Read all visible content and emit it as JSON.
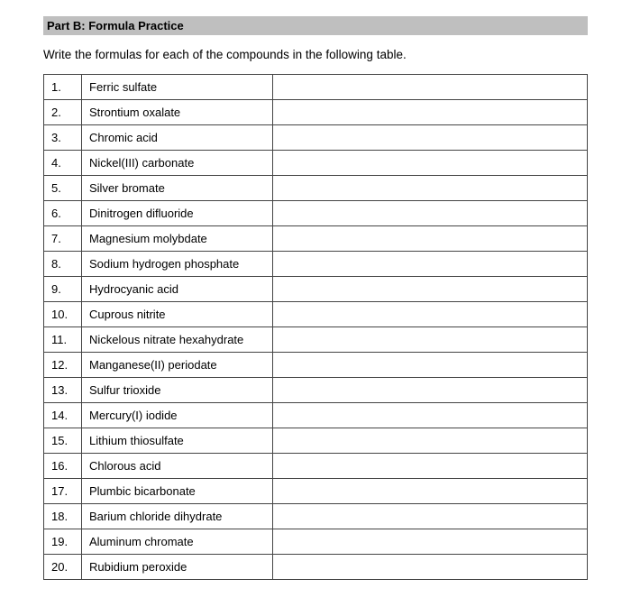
{
  "section_title": "Part B: Formula Practice",
  "instruction": "Write the formulas for each of the compounds in the following table.",
  "rows": [
    {
      "n": "1.",
      "name": "Ferric sulfate",
      "answer": ""
    },
    {
      "n": "2.",
      "name": "Strontium oxalate",
      "answer": ""
    },
    {
      "n": "3.",
      "name": "Chromic acid",
      "answer": ""
    },
    {
      "n": "4.",
      "name": "Nickel(III) carbonate",
      "answer": ""
    },
    {
      "n": "5.",
      "name": "Silver bromate",
      "answer": ""
    },
    {
      "n": "6.",
      "name": "Dinitrogen difluoride",
      "answer": ""
    },
    {
      "n": "7.",
      "name": "Magnesium molybdate",
      "answer": ""
    },
    {
      "n": "8.",
      "name": "Sodium hydrogen phosphate",
      "answer": ""
    },
    {
      "n": "9.",
      "name": "Hydrocyanic acid",
      "answer": ""
    },
    {
      "n": "10.",
      "name": "Cuprous nitrite",
      "answer": ""
    },
    {
      "n": "11.",
      "name": "Nickelous nitrate hexahydrate",
      "answer": ""
    },
    {
      "n": "12.",
      "name": "Manganese(II) periodate",
      "answer": ""
    },
    {
      "n": "13.",
      "name": "Sulfur trioxide",
      "answer": ""
    },
    {
      "n": "14.",
      "name": "Mercury(I) iodide",
      "answer": ""
    },
    {
      "n": "15.",
      "name": "Lithium thiosulfate",
      "answer": ""
    },
    {
      "n": "16.",
      "name": "Chlorous acid",
      "answer": ""
    },
    {
      "n": "17.",
      "name": "Plumbic bicarbonate",
      "answer": ""
    },
    {
      "n": "18.",
      "name": "Barium chloride dihydrate",
      "answer": ""
    },
    {
      "n": "19.",
      "name": "Aluminum chromate",
      "answer": ""
    },
    {
      "n": "20.",
      "name": "Rubidium peroxide",
      "answer": ""
    }
  ],
  "colors": {
    "header_bg": "#bfbfbf",
    "border": "#444444",
    "text": "#000000",
    "page_bg": "#ffffff"
  }
}
